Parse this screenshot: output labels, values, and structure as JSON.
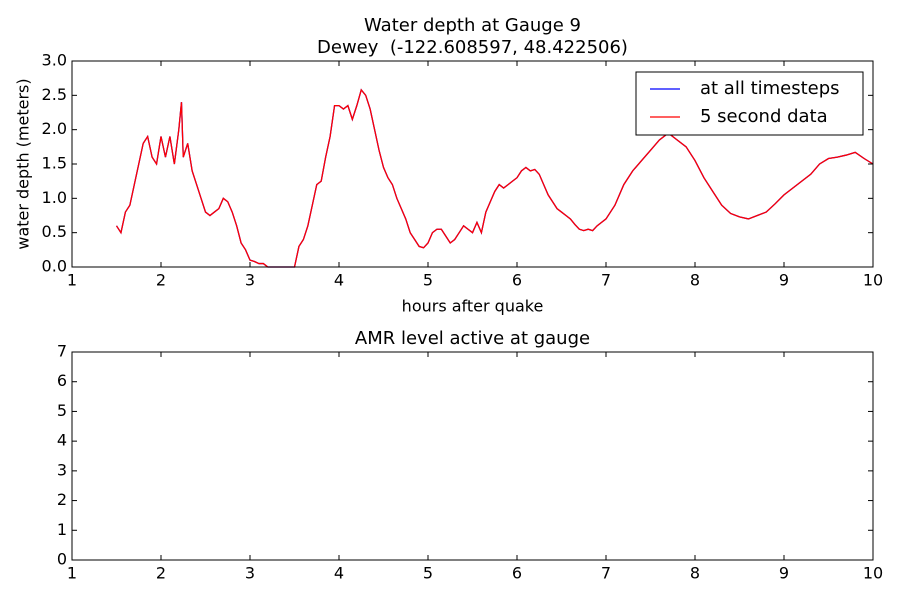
{
  "chart_data": [
    {
      "type": "line",
      "title": "Water depth at Gauge 9",
      "subtitle": "Dewey  (-122.608597, 48.422506)",
      "xlabel": "hours after quake",
      "ylabel": "water depth (meters)",
      "x": [
        1.5,
        1.55,
        1.6,
        1.65,
        1.7,
        1.75,
        1.8,
        1.85,
        1.9,
        1.95,
        2.0,
        2.05,
        2.1,
        2.15,
        2.2,
        2.23,
        2.25,
        2.3,
        2.35,
        2.4,
        2.45,
        2.5,
        2.55,
        2.6,
        2.65,
        2.7,
        2.75,
        2.8,
        2.85,
        2.9,
        2.95,
        3.0,
        3.05,
        3.1,
        3.15,
        3.2,
        3.3,
        3.4,
        3.5,
        3.55,
        3.6,
        3.65,
        3.7,
        3.75,
        3.8,
        3.85,
        3.9,
        3.95,
        4.0,
        4.05,
        4.1,
        4.15,
        4.2,
        4.25,
        4.3,
        4.35,
        4.4,
        4.45,
        4.5,
        4.55,
        4.6,
        4.65,
        4.7,
        4.75,
        4.8,
        4.85,
        4.9,
        4.95,
        5.0,
        5.05,
        5.1,
        5.15,
        5.2,
        5.25,
        5.3,
        5.35,
        5.4,
        5.45,
        5.5,
        5.55,
        5.6,
        5.65,
        5.7,
        5.75,
        5.8,
        5.85,
        5.9,
        5.95,
        6.0,
        6.05,
        6.1,
        6.15,
        6.2,
        6.25,
        6.3,
        6.35,
        6.4,
        6.45,
        6.5,
        6.55,
        6.6,
        6.65,
        6.7,
        6.75,
        6.8,
        6.85,
        6.9,
        6.95,
        7.0,
        7.1,
        7.2,
        7.3,
        7.4,
        7.5,
        7.6,
        7.7,
        7.8,
        7.9,
        8.0,
        8.1,
        8.2,
        8.3,
        8.4,
        8.5,
        8.6,
        8.7,
        8.8,
        8.9,
        9.0,
        9.1,
        9.2,
        9.3,
        9.4,
        9.5,
        9.6,
        9.7,
        9.8,
        9.9,
        10.0
      ],
      "series": [
        {
          "name": "at all timesteps",
          "color": "#0000ff",
          "values": [
            0.6,
            0.5,
            0.8,
            0.9,
            1.2,
            1.5,
            1.8,
            1.9,
            1.6,
            1.5,
            1.9,
            1.6,
            1.9,
            1.5,
            2.0,
            2.4,
            1.6,
            1.8,
            1.4,
            1.2,
            1.0,
            0.8,
            0.75,
            0.8,
            0.85,
            1.0,
            0.95,
            0.8,
            0.6,
            0.35,
            0.25,
            0.1,
            0.08,
            0.05,
            0.05,
            0,
            0,
            0,
            0,
            0.3,
            0.4,
            0.6,
            0.9,
            1.2,
            1.25,
            1.6,
            1.9,
            2.35,
            2.35,
            2.3,
            2.35,
            2.15,
            2.35,
            2.58,
            2.5,
            2.3,
            2.0,
            1.7,
            1.45,
            1.3,
            1.2,
            1.0,
            0.85,
            0.7,
            0.5,
            0.4,
            0.3,
            0.28,
            0.35,
            0.5,
            0.55,
            0.55,
            0.45,
            0.35,
            0.4,
            0.5,
            0.6,
            0.55,
            0.5,
            0.65,
            0.5,
            0.8,
            0.95,
            1.1,
            1.2,
            1.15,
            1.2,
            1.25,
            1.3,
            1.4,
            1.45,
            1.4,
            1.42,
            1.35,
            1.2,
            1.05,
            0.95,
            0.85,
            0.8,
            0.75,
            0.7,
            0.62,
            0.55,
            0.53,
            0.55,
            0.53,
            0.6,
            0.65,
            0.7,
            0.9,
            1.2,
            1.4,
            1.55,
            1.7,
            1.85,
            1.95,
            1.85,
            1.75,
            1.55,
            1.3,
            1.1,
            0.9,
            0.78,
            0.73,
            0.7,
            0.75,
            0.8,
            0.92,
            1.05,
            1.15,
            1.25,
            1.35,
            1.5,
            1.58,
            1.6,
            1.63,
            1.67,
            1.58,
            1.5
          ]
        },
        {
          "name": "5 second data",
          "color": "#ff0000",
          "values": [
            0.6,
            0.5,
            0.8,
            0.9,
            1.2,
            1.5,
            1.8,
            1.9,
            1.6,
            1.5,
            1.9,
            1.6,
            1.9,
            1.5,
            2.0,
            2.4,
            1.6,
            1.8,
            1.4,
            1.2,
            1.0,
            0.8,
            0.75,
            0.8,
            0.85,
            1.0,
            0.95,
            0.8,
            0.6,
            0.35,
            0.25,
            0.1,
            0.08,
            0.05,
            0.05,
            0,
            0,
            0,
            0,
            0.3,
            0.4,
            0.6,
            0.9,
            1.2,
            1.25,
            1.6,
            1.9,
            2.35,
            2.35,
            2.3,
            2.35,
            2.15,
            2.35,
            2.58,
            2.5,
            2.3,
            2.0,
            1.7,
            1.45,
            1.3,
            1.2,
            1.0,
            0.85,
            0.7,
            0.5,
            0.4,
            0.3,
            0.28,
            0.35,
            0.5,
            0.55,
            0.55,
            0.45,
            0.35,
            0.4,
            0.5,
            0.6,
            0.55,
            0.5,
            0.65,
            0.5,
            0.8,
            0.95,
            1.1,
            1.2,
            1.15,
            1.2,
            1.25,
            1.3,
            1.4,
            1.45,
            1.4,
            1.42,
            1.35,
            1.2,
            1.05,
            0.95,
            0.85,
            0.8,
            0.75,
            0.7,
            0.62,
            0.55,
            0.53,
            0.55,
            0.53,
            0.6,
            0.65,
            0.7,
            0.9,
            1.2,
            1.4,
            1.55,
            1.7,
            1.85,
            1.95,
            1.85,
            1.75,
            1.55,
            1.3,
            1.1,
            0.9,
            0.78,
            0.73,
            0.7,
            0.75,
            0.8,
            0.92,
            1.05,
            1.15,
            1.25,
            1.35,
            1.5,
            1.58,
            1.6,
            1.63,
            1.67,
            1.58,
            1.5
          ]
        }
      ],
      "xlim": [
        1,
        10
      ],
      "xticks": [
        1,
        2,
        3,
        4,
        5,
        6,
        7,
        8,
        9,
        10
      ],
      "ylim": [
        0,
        3
      ],
      "yticks": [
        {
          "value": 0,
          "label": "0.0"
        },
        {
          "value": 0.5,
          "label": "0.5"
        },
        {
          "value": 1,
          "label": "1.0"
        },
        {
          "value": 1.5,
          "label": "1.5"
        },
        {
          "value": 2,
          "label": "2.0"
        },
        {
          "value": 2.5,
          "label": "2.5"
        },
        {
          "value": 3,
          "label": "3.0"
        }
      ],
      "legend": "upper right"
    },
    {
      "type": "line",
      "title": "AMR level active at gauge",
      "series": [],
      "xlim": [
        1,
        10
      ],
      "xticks": [
        1,
        2,
        3,
        4,
        5,
        6,
        7,
        8,
        9,
        10
      ],
      "ylim": [
        0,
        7
      ],
      "yticks": [
        0,
        1,
        2,
        3,
        4,
        5,
        6,
        7
      ]
    }
  ]
}
